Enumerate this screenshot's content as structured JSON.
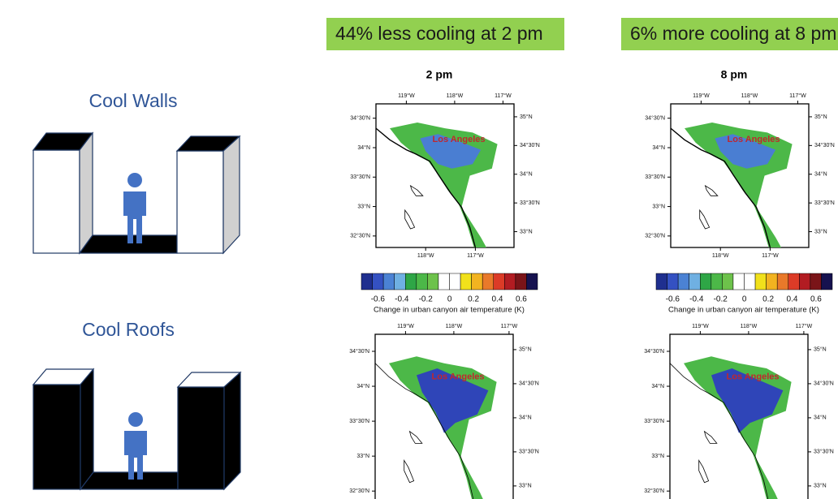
{
  "left": {
    "walls_title": "Cool Walls",
    "roofs_title": "Cool Roofs"
  },
  "panels": [
    {
      "banner": "44% less cooling at 2 pm",
      "title": "2 pm",
      "maps": [
        {
          "city": "Los Angeles",
          "top_ticks": [
            "119°W",
            "118°W",
            "117°W"
          ],
          "left_ticks": [
            "34°30'N",
            "34°N",
            "33°30'N",
            "33°N",
            "32°30'N"
          ],
          "right_ticks": [
            "35°N",
            "34°30'N",
            "34°N",
            "33°30'N",
            "33°N"
          ],
          "bottom_ticks": [
            "118°W",
            "117°W"
          ]
        },
        {
          "city": "Los Angeles",
          "top_ticks": [
            "119°W",
            "118°W",
            "117°W"
          ],
          "left_ticks": [
            "34°30'N",
            "34°N",
            "33°30'N",
            "33°N",
            "32°30'N"
          ],
          "right_ticks": [
            "35°N",
            "34°30'N",
            "34°N",
            "33°30'N",
            "33°N"
          ]
        }
      ],
      "colorbar": {
        "labels": [
          "-0.6",
          "-0.4",
          "-0.2",
          "0",
          "0.2",
          "0.4",
          "0.6"
        ],
        "caption": "Change in urban canyon air temperature (K)"
      }
    },
    {
      "banner": "6% more cooling at 8 pm",
      "title": "8 pm",
      "maps": [
        {
          "city": "Los Angeles",
          "top_ticks": [
            "119°W",
            "118°W",
            "117°W"
          ],
          "left_ticks": [
            "34°30'N",
            "34°N",
            "33°30'N",
            "33°N",
            "32°30'N"
          ],
          "right_ticks": [
            "35°N",
            "34°30'N",
            "34°N",
            "33°30'N",
            "33°N"
          ],
          "bottom_ticks": [
            "118°W",
            "117°W"
          ]
        },
        {
          "city": "Los Angeles",
          "top_ticks": [
            "119°W",
            "118°W",
            "117°W"
          ],
          "left_ticks": [
            "34°30'N",
            "34°N",
            "33°30'N",
            "33°N",
            "32°30'N"
          ],
          "right_ticks": [
            "35°N",
            "34°30'N",
            "34°N",
            "33°30'N",
            "33°N"
          ]
        }
      ],
      "colorbar": {
        "labels": [
          "-0.6",
          "-0.4",
          "-0.2",
          "0",
          "0.2",
          "0.4",
          "0.6"
        ],
        "caption": "Change in urban canyon air temperature (K)"
      }
    }
  ]
}
